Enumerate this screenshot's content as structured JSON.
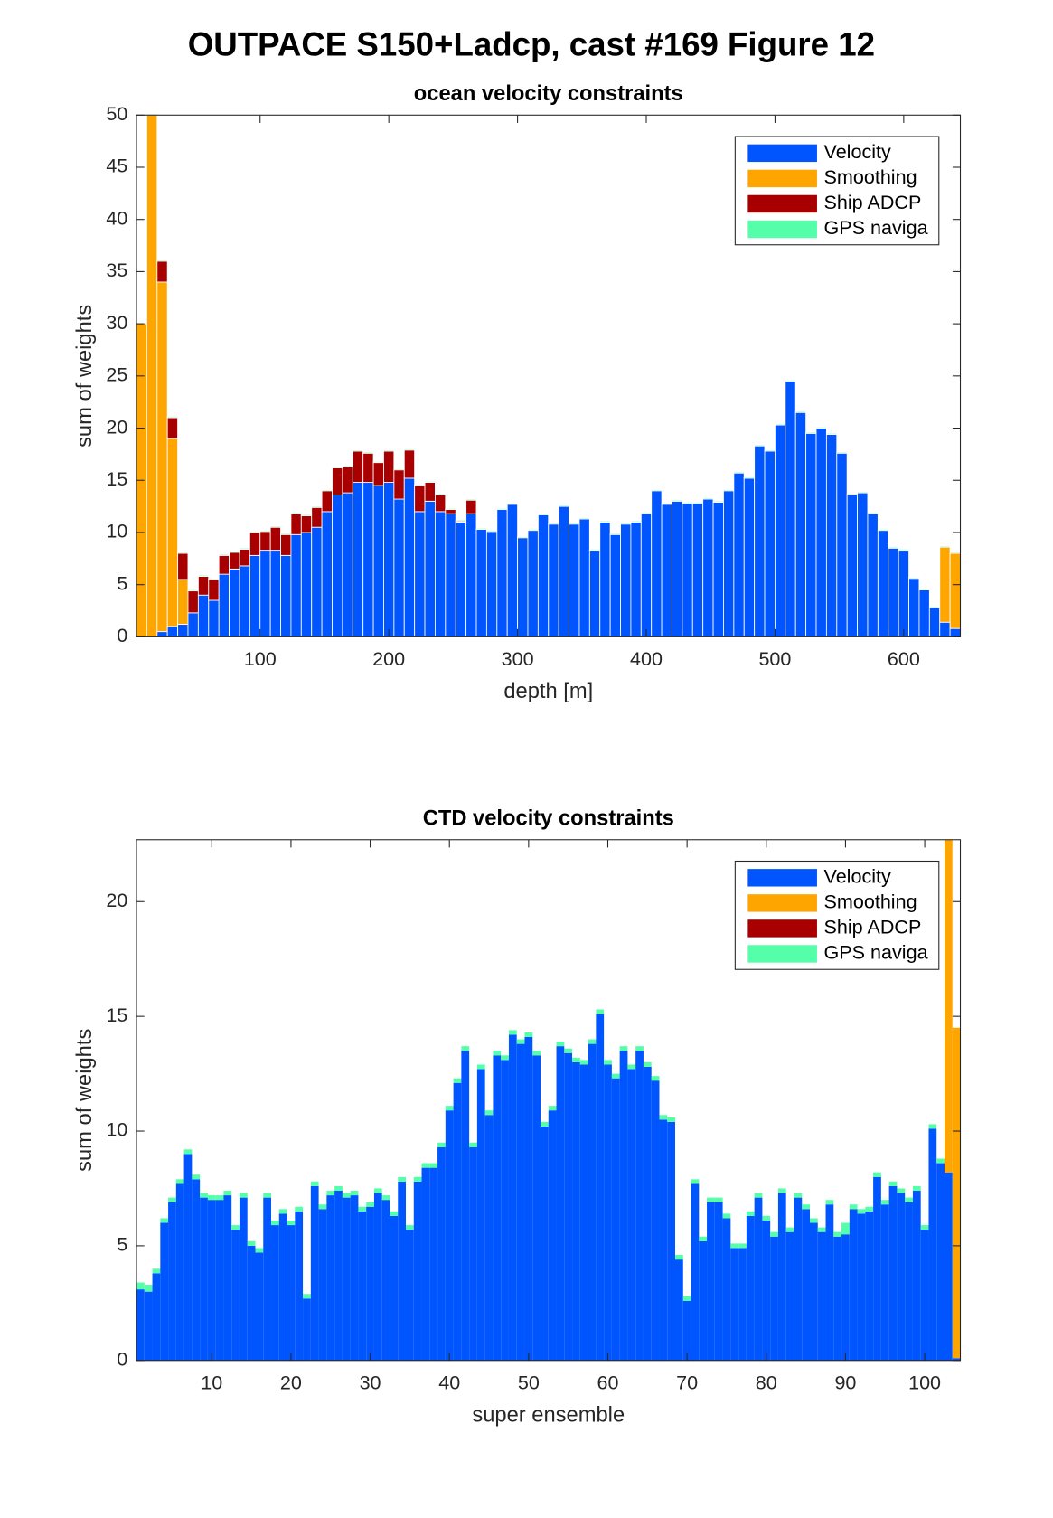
{
  "title": "OUTPACE S150+Ladcp, cast #169  Figure 12",
  "chart_data": [
    {
      "type": "histogram",
      "title": "ocean velocity constraints",
      "xlabel": "depth [m]",
      "ylabel": "sum of weights",
      "bins": [
        4,
        12,
        20,
        28,
        36,
        44,
        52,
        60,
        68,
        76,
        84,
        92,
        100,
        108,
        116,
        124,
        132,
        140,
        148,
        156,
        164,
        172,
        180,
        188,
        196,
        204,
        212,
        220,
        228,
        236,
        244,
        252,
        260,
        268,
        276,
        284,
        292,
        300,
        308,
        316,
        324,
        332,
        340,
        348,
        356,
        364,
        372,
        380,
        388,
        396,
        404,
        412,
        420,
        428,
        436,
        444,
        452,
        460,
        468,
        476,
        484,
        492,
        500,
        508,
        516,
        524,
        532,
        540,
        548,
        556,
        564,
        572,
        580,
        588,
        596,
        604,
        612,
        620,
        628,
        636,
        644
      ],
      "series": [
        {
          "name": "Velocity",
          "color": "#0055ff",
          "values": [
            0,
            0,
            0.5,
            1,
            1.2,
            2.3,
            4,
            3.5,
            6,
            6.5,
            6.8,
            7.8,
            8.3,
            8.3,
            7.8,
            9.8,
            10,
            10.5,
            12,
            13.6,
            13.8,
            14.8,
            14.8,
            14.5,
            14.8,
            13.2,
            15.2,
            12,
            13,
            12,
            11.8,
            11,
            11.8,
            10.3,
            10.1,
            12.2,
            12.7,
            9.5,
            10.2,
            11.7,
            10.8,
            12.5,
            10.8,
            11.3,
            8.3,
            11,
            9.8,
            10.8,
            11,
            11.8,
            14,
            12.7,
            13,
            12.8,
            12.8,
            13.2,
            12.9,
            14,
            15.7,
            15.2,
            18.3,
            17.8,
            20.3,
            24.5,
            21.5,
            19.5,
            20,
            19.4,
            17.6,
            13.6,
            13.8,
            11.8,
            10.2,
            8.5,
            8.3,
            5.6,
            4.5,
            2.8,
            1.4,
            0.8
          ]
        },
        {
          "name": "Smoothing",
          "color": "#ffa500",
          "values": [
            30,
            50,
            33.5,
            18,
            4.3,
            0,
            0,
            0,
            0,
            0,
            0,
            0,
            0,
            0,
            0,
            0,
            0,
            0,
            0,
            0,
            0,
            0,
            0,
            0,
            0,
            0,
            0,
            0,
            0,
            0,
            0,
            0,
            0,
            0,
            0,
            0,
            0,
            0,
            0,
            0,
            0,
            0,
            0,
            0,
            0,
            0,
            0,
            0,
            0,
            0,
            0,
            0,
            0,
            0,
            0,
            0,
            0,
            0,
            0,
            0,
            0,
            0,
            0,
            0,
            0,
            0,
            0,
            0,
            0,
            0,
            0,
            0,
            0,
            0,
            0,
            0,
            0,
            0,
            7.2,
            7.2
          ]
        },
        {
          "name": "Ship ADCP",
          "color": "#a80000",
          "values": [
            0,
            0,
            2,
            2,
            2.5,
            2.1,
            1.8,
            2,
            1.8,
            1.6,
            1.6,
            2.2,
            1.8,
            2.2,
            2,
            2,
            1.6,
            1.9,
            2,
            2.6,
            2.5,
            3,
            2.8,
            2.2,
            3,
            2.8,
            2.7,
            2.5,
            1.8,
            1.6,
            0.4,
            0.1,
            1.3,
            0,
            0,
            0,
            0,
            0,
            0,
            0,
            0,
            0,
            0,
            0,
            0,
            0,
            0,
            0,
            0,
            0,
            0,
            0,
            0,
            0,
            0,
            0,
            0,
            0,
            0,
            0,
            0,
            0,
            0,
            0,
            0,
            0,
            0,
            0,
            0,
            0,
            0,
            0,
            0,
            0,
            0,
            0,
            0,
            0,
            0,
            0
          ]
        },
        {
          "name": "GPS naviga",
          "color": "#55ffaa",
          "values": [
            0.1,
            0.1,
            0.1,
            0.1,
            0.1,
            0.1,
            0.1,
            0.1,
            0.1,
            0.1,
            0.1,
            0.1,
            0.1,
            0.1,
            0.1,
            0.1,
            0.1,
            0.1,
            0.1,
            0.1,
            0.1,
            0.1,
            0.1,
            0.1,
            0.1,
            0.1,
            0.1,
            0.1,
            0.1,
            0.1,
            0.1,
            0.1,
            0.1,
            0.1,
            0.1,
            0.1,
            0.1,
            0.1,
            0.1,
            0.1,
            0.1,
            0.1,
            0.1,
            0.1,
            0.1,
            0.1,
            0.1,
            0.1,
            0.1,
            0.1,
            0.1,
            0.1,
            0.1,
            0.1,
            0.1,
            0.1,
            0.1,
            0.1,
            0.1,
            0.1,
            0.1,
            0.1,
            0.1,
            0.1,
            0.1,
            0.1,
            0.1,
            0.1,
            0.1,
            0.1,
            0.1,
            0.1,
            0.1,
            0.1,
            0.1,
            0.1,
            0.1,
            0.1,
            0.1,
            0.1
          ]
        }
      ],
      "xlim": [
        4,
        644
      ],
      "xticks": [
        100,
        200,
        300,
        400,
        500,
        600
      ],
      "ylim": [
        0,
        50
      ],
      "yticks": [
        0,
        5,
        10,
        15,
        20,
        25,
        30,
        35,
        40,
        45,
        50
      ],
      "edgecolor": "#ffffff",
      "legend": "northeast",
      "stacked": true
    },
    {
      "type": "histogram",
      "title": "CTD velocity constraints",
      "xlabel": "super ensemble",
      "ylabel": "sum of weights",
      "bins": [
        0.5,
        1.5,
        2.5,
        3.5,
        4.5,
        5.5,
        6.5,
        7.5,
        8.5,
        9.5,
        10.5,
        11.5,
        12.5,
        13.5,
        14.5,
        15.5,
        16.5,
        17.5,
        18.5,
        19.5,
        20.5,
        21.5,
        22.5,
        23.5,
        24.5,
        25.5,
        26.5,
        27.5,
        28.5,
        29.5,
        30.5,
        31.5,
        32.5,
        33.5,
        34.5,
        35.5,
        36.5,
        37.5,
        38.5,
        39.5,
        40.5,
        41.5,
        42.5,
        43.5,
        44.5,
        45.5,
        46.5,
        47.5,
        48.5,
        49.5,
        50.5,
        51.5,
        52.5,
        53.5,
        54.5,
        55.5,
        56.5,
        57.5,
        58.5,
        59.5,
        60.5,
        61.5,
        62.5,
        63.5,
        64.5,
        65.5,
        66.5,
        67.5,
        68.5,
        69.5,
        70.5,
        71.5,
        72.5,
        73.5,
        74.5,
        75.5,
        76.5,
        77.5,
        78.5,
        79.5,
        80.5,
        81.5,
        82.5,
        83.5,
        84.5,
        85.5,
        86.5,
        87.5,
        88.5,
        89.5,
        90.5,
        91.5,
        92.5,
        93.5,
        94.5,
        95.5,
        96.5,
        97.5,
        98.5,
        99.5,
        100.5,
        101.5,
        102.5,
        103.5,
        104.5
      ],
      "series": [
        {
          "name": "Velocity",
          "color": "#0055ff",
          "values": [
            3.1,
            3.0,
            3.8,
            6.0,
            6.9,
            7.7,
            9.0,
            7.9,
            7.1,
            7.0,
            7.0,
            7.2,
            5.7,
            7.1,
            5.0,
            4.7,
            7.1,
            5.9,
            6.4,
            5.9,
            6.5,
            2.7,
            7.6,
            6.6,
            7.2,
            7.4,
            7.1,
            7.2,
            6.5,
            6.7,
            7.3,
            7.0,
            6.3,
            7.8,
            5.7,
            7.8,
            8.4,
            8.4,
            9.3,
            10.9,
            12.1,
            13.5,
            9.3,
            12.7,
            10.7,
            13.3,
            13.1,
            14.2,
            13.8,
            14.1,
            13.3,
            10.2,
            10.9,
            13.7,
            13.4,
            13.0,
            12.9,
            13.8,
            15.1,
            12.9,
            12.3,
            13.5,
            12.7,
            13.5,
            12.8,
            12.2,
            10.5,
            10.4,
            4.4,
            2.6,
            7.7,
            5.2,
            6.9,
            6.9,
            6.2,
            4.9,
            4.9,
            6.3,
            7.1,
            6.1,
            5.4,
            7.3,
            5.6,
            7.1,
            6.6,
            6.0,
            5.6,
            6.8,
            5.4,
            5.5,
            6.6,
            6.4,
            6.5,
            8.0,
            6.8,
            7.6,
            7.3,
            6.9,
            7.4,
            5.7,
            10.1,
            8.6,
            8.2,
            0.1
          ]
        },
        {
          "name": "Smoothing",
          "color": "#ffa500",
          "values": [
            0,
            0,
            0,
            0,
            0,
            0,
            0,
            0,
            0,
            0,
            0,
            0,
            0,
            0,
            0,
            0,
            0,
            0,
            0,
            0,
            0,
            0,
            0,
            0,
            0,
            0,
            0,
            0,
            0,
            0,
            0,
            0,
            0,
            0,
            0,
            0,
            0,
            0,
            0,
            0,
            0,
            0,
            0,
            0,
            0,
            0,
            0,
            0,
            0,
            0,
            0,
            0,
            0,
            0,
            0,
            0,
            0,
            0,
            0,
            0,
            0,
            0,
            0,
            0,
            0,
            0,
            0,
            0,
            0,
            0,
            0,
            0,
            0,
            0,
            0,
            0,
            0,
            0,
            0,
            0,
            0,
            0,
            0,
            0,
            0,
            0,
            0,
            0,
            0,
            0,
            0,
            0,
            0,
            0,
            0,
            0,
            0,
            0,
            0,
            0,
            0,
            0,
            14.5,
            14.4
          ]
        },
        {
          "name": "Ship ADCP",
          "color": "#a80000",
          "values": [
            0,
            0,
            0,
            0,
            0,
            0,
            0,
            0,
            0,
            0,
            0,
            0,
            0,
            0,
            0,
            0,
            0,
            0,
            0,
            0,
            0,
            0,
            0,
            0,
            0,
            0,
            0,
            0,
            0,
            0,
            0,
            0,
            0,
            0,
            0,
            0,
            0,
            0,
            0,
            0,
            0,
            0,
            0,
            0,
            0,
            0,
            0,
            0,
            0,
            0,
            0,
            0,
            0,
            0,
            0,
            0,
            0,
            0,
            0,
            0,
            0,
            0,
            0,
            0,
            0,
            0,
            0,
            0,
            0,
            0,
            0,
            0,
            0,
            0,
            0,
            0,
            0,
            0,
            0,
            0,
            0,
            0,
            0,
            0,
            0,
            0,
            0,
            0,
            0,
            0,
            0,
            0,
            0,
            0,
            0,
            0,
            0,
            0,
            0,
            0,
            0,
            0,
            0,
            0
          ]
        },
        {
          "name": "GPS naviga",
          "color": "#55ffaa",
          "values": [
            0.3,
            0.3,
            0.2,
            0.2,
            0.2,
            0.2,
            0.2,
            0.2,
            0.2,
            0.2,
            0.2,
            0.2,
            0.2,
            0.2,
            0.2,
            0.2,
            0.2,
            0.2,
            0.2,
            0.2,
            0.2,
            0.2,
            0.2,
            0.2,
            0.2,
            0.2,
            0.2,
            0.2,
            0.2,
            0.2,
            0.2,
            0.2,
            0.2,
            0.2,
            0.2,
            0.2,
            0.2,
            0.2,
            0.2,
            0.2,
            0.2,
            0.2,
            0.2,
            0.2,
            0.2,
            0.2,
            0.2,
            0.2,
            0.2,
            0.2,
            0.2,
            0.2,
            0.2,
            0.2,
            0.2,
            0.2,
            0.2,
            0.2,
            0.2,
            0.2,
            0.2,
            0.2,
            0.2,
            0.2,
            0.2,
            0.2,
            0.2,
            0.2,
            0.2,
            0.2,
            0.2,
            0.2,
            0.2,
            0.2,
            0.2,
            0.2,
            0.2,
            0.2,
            0.2,
            0.2,
            0.2,
            0.2,
            0.2,
            0.2,
            0.2,
            0.2,
            0.2,
            0.2,
            0.2,
            0.5,
            0.2,
            0.2,
            0.2,
            0.2,
            0.2,
            0.2,
            0.2,
            0.2,
            0.2,
            0.2,
            0.2,
            0.2,
            0,
            0
          ]
        }
      ],
      "xlim": [
        0.5,
        104.5
      ],
      "xticks": [
        10,
        20,
        30,
        40,
        50,
        60,
        70,
        80,
        90,
        100
      ],
      "ylim": [
        0,
        22.7
      ],
      "yticks": [
        0,
        5,
        10,
        15,
        20
      ],
      "legend": "northeast",
      "stacked": true
    }
  ]
}
